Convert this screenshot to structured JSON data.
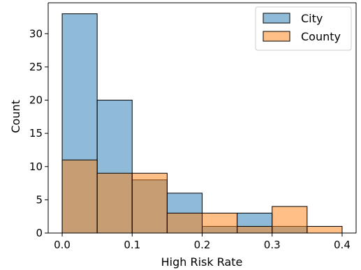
{
  "chart_data": {
    "type": "histogram",
    "title": "",
    "xlabel": "High Risk Rate",
    "ylabel": "Count",
    "xlim": [
      -0.02,
      0.42
    ],
    "ylim": [
      0,
      34.65
    ],
    "grid": false,
    "legend_position": "top-right",
    "bin_edges": [
      0.0,
      0.05,
      0.1,
      0.15,
      0.2,
      0.25,
      0.3,
      0.35,
      0.4
    ],
    "x_ticks": [
      {
        "value": 0.0,
        "label": "0.0"
      },
      {
        "value": 0.1,
        "label": "0.1"
      },
      {
        "value": 0.2,
        "label": "0.2"
      },
      {
        "value": 0.3,
        "label": "0.3"
      },
      {
        "value": 0.4,
        "label": "0.4"
      }
    ],
    "y_ticks": [
      {
        "value": 0,
        "label": "0"
      },
      {
        "value": 5,
        "label": "5"
      },
      {
        "value": 10,
        "label": "10"
      },
      {
        "value": 15,
        "label": "15"
      },
      {
        "value": 20,
        "label": "20"
      },
      {
        "value": 25,
        "label": "25"
      },
      {
        "value": 30,
        "label": "30"
      }
    ],
    "series": [
      {
        "name": "City",
        "color": "#1f77b4",
        "values": [
          33,
          20,
          8,
          6,
          1,
          3,
          1,
          0
        ]
      },
      {
        "name": "County",
        "color": "#ff7f0e",
        "values": [
          11,
          9,
          9,
          3,
          3,
          1,
          4,
          1
        ]
      }
    ]
  }
}
